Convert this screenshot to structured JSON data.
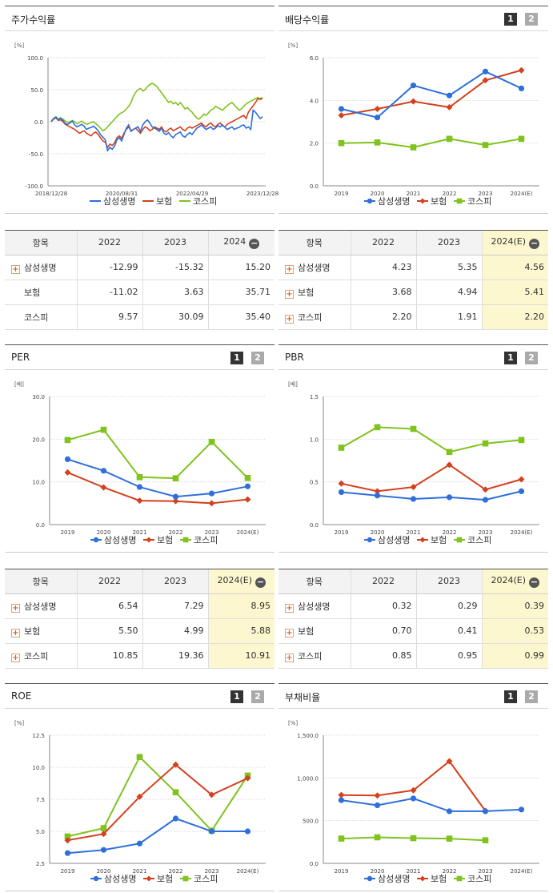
{
  "colors": {
    "samsung": "#2e6fdb",
    "insurance": "#d5401d",
    "kospi": "#7fc31c",
    "grid": "#d9d9d9",
    "axis": "#888888"
  },
  "icons": {
    "expand": "plus-icon",
    "collapse": "minus-icon"
  },
  "pager": {
    "p1": "1",
    "p2": "2"
  },
  "panels": {
    "stock_return": {
      "title": "주가수익률"
    },
    "dividend": {
      "title": "배당수익률"
    },
    "per": {
      "title": "PER"
    },
    "pbr": {
      "title": "PBR"
    },
    "roe": {
      "title": "ROE"
    },
    "debt": {
      "title": "부채비율"
    }
  },
  "chart_data": [
    {
      "id": "stock_return",
      "type": "line",
      "unit": "[%]",
      "ylim": [
        -100,
        100
      ],
      "yticks": [
        "100.0",
        "50.0",
        "0.0",
        "-50.0",
        "-100.0"
      ],
      "xtick_labels": [
        "2018/12/28",
        "2020/08/31",
        "2022/04/29",
        "2023/12/28"
      ],
      "series": [
        {
          "name": "삼성생명",
          "key": "samsung",
          "values": [
            0,
            5,
            7,
            3,
            6,
            2,
            -3,
            -4,
            -2,
            1,
            -5,
            -8,
            -6,
            -4,
            -7,
            -12,
            -10,
            -9,
            -7,
            -10,
            -14,
            -20,
            -24,
            -28,
            -45,
            -40,
            -43,
            -38,
            -28,
            -25,
            -30,
            -20,
            -10,
            -5,
            -15,
            -12,
            -10,
            -8,
            -15,
            -5,
            0,
            3,
            -2,
            -8,
            -10,
            -12,
            -15,
            -10,
            -18,
            -20,
            -17,
            -22,
            -25,
            -20,
            -18,
            -16,
            -22,
            -24,
            -20,
            -17,
            -20,
            -15,
            -10,
            -8,
            -5,
            -9,
            -12,
            -10,
            -8,
            -12,
            -10,
            -6,
            -8,
            -5,
            -9,
            -12,
            -10,
            -8,
            -12,
            -10,
            -9,
            -6,
            -5,
            -10,
            -8,
            -12,
            18,
            15,
            10,
            5,
            8
          ]
        },
        {
          "name": "보험",
          "key": "insurance",
          "values": [
            0,
            4,
            6,
            2,
            3,
            0,
            -4,
            -6,
            -8,
            -10,
            -12,
            -15,
            -18,
            -16,
            -14,
            -18,
            -20,
            -22,
            -18,
            -16,
            -20,
            -25,
            -30,
            -32,
            -40,
            -35,
            -37,
            -33,
            -25,
            -22,
            -26,
            -18,
            -12,
            -8,
            -14,
            -12,
            -10,
            -14,
            -18,
            -12,
            -8,
            -10,
            -14,
            -12,
            -8,
            -10,
            -12,
            -8,
            -14,
            -16,
            -12,
            -10,
            -14,
            -12,
            -10,
            -8,
            -12,
            -14,
            -10,
            -8,
            -10,
            -8,
            -6,
            -4,
            -2,
            -6,
            -8,
            -4,
            -2,
            -6,
            -8,
            -4,
            -2,
            -6,
            -8,
            -4,
            -2,
            0,
            2,
            4,
            6,
            8,
            10,
            5,
            15,
            20,
            25,
            30,
            36,
            35,
            36
          ]
        },
        {
          "name": "코스피",
          "key": "kospi",
          "values": [
            0,
            5,
            8,
            4,
            6,
            4,
            1,
            -1,
            0,
            2,
            0,
            -3,
            -1,
            1,
            -2,
            -4,
            -3,
            -1,
            0,
            -3,
            -6,
            -10,
            -14,
            -12,
            -8,
            -4,
            0,
            4,
            8,
            12,
            14,
            16,
            20,
            24,
            30,
            40,
            46,
            50,
            52,
            48,
            50,
            55,
            58,
            60,
            58,
            55,
            50,
            45,
            40,
            35,
            30,
            32,
            28,
            30,
            26,
            30,
            25,
            20,
            22,
            18,
            15,
            10,
            6,
            4,
            8,
            12,
            10,
            14,
            18,
            20,
            24,
            22,
            20,
            18,
            22,
            25,
            28,
            30,
            26,
            22,
            18,
            20,
            24,
            28,
            30,
            32,
            34,
            36,
            38,
            36,
            38
          ]
        }
      ]
    },
    {
      "id": "dividend",
      "type": "line",
      "unit": "[%]",
      "ylim": [
        0,
        6
      ],
      "yticks": [
        "6.0",
        "4.0",
        "2.0",
        "0.0"
      ],
      "categories": [
        "2019",
        "2020",
        "2021",
        "2022",
        "2023",
        "2024(E)"
      ],
      "series": [
        {
          "name": "삼성생명",
          "key": "samsung",
          "values": [
            3.6,
            3.2,
            4.7,
            4.23,
            5.35,
            4.56
          ]
        },
        {
          "name": "보험",
          "key": "insurance",
          "values": [
            3.3,
            3.6,
            3.95,
            3.68,
            4.94,
            5.41
          ]
        },
        {
          "name": "코스피",
          "key": "kospi",
          "values": [
            2.0,
            2.03,
            1.8,
            2.2,
            1.91,
            2.2
          ]
        }
      ]
    },
    {
      "id": "per",
      "type": "line",
      "unit": "[배]",
      "ylim": [
        0,
        30
      ],
      "yticks": [
        "30.0",
        "20.0",
        "10.0",
        "0.0"
      ],
      "categories": [
        "2019",
        "2020",
        "2021",
        "2022",
        "2023",
        "2024(E)"
      ],
      "series": [
        {
          "name": "삼성생명",
          "key": "samsung",
          "values": [
            15.3,
            12.6,
            8.8,
            6.54,
            7.29,
            8.95
          ]
        },
        {
          "name": "보험",
          "key": "insurance",
          "values": [
            12.2,
            8.7,
            5.6,
            5.5,
            4.99,
            5.88
          ]
        },
        {
          "name": "코스피",
          "key": "kospi",
          "values": [
            19.8,
            22.2,
            11.1,
            10.85,
            19.36,
            10.91
          ]
        }
      ]
    },
    {
      "id": "pbr",
      "type": "line",
      "unit": "[배]",
      "ylim": [
        0,
        1.5
      ],
      "yticks": [
        "1.5",
        "1.0",
        "0.5",
        "0.0"
      ],
      "categories": [
        "2019",
        "2020",
        "2021",
        "2022",
        "2023",
        "2024(E)"
      ],
      "series": [
        {
          "name": "삼성생명",
          "key": "samsung",
          "values": [
            0.38,
            0.34,
            0.3,
            0.32,
            0.29,
            0.39
          ]
        },
        {
          "name": "보험",
          "key": "insurance",
          "values": [
            0.48,
            0.39,
            0.44,
            0.7,
            0.41,
            0.53
          ]
        },
        {
          "name": "코스피",
          "key": "kospi",
          "values": [
            0.9,
            1.14,
            1.12,
            0.85,
            0.95,
            0.99
          ]
        }
      ]
    },
    {
      "id": "roe",
      "type": "line",
      "unit": "[%]",
      "ylim": [
        2.5,
        12.5
      ],
      "yticks": [
        "12.5",
        "10.0",
        "7.5",
        "5.0",
        "2.5"
      ],
      "categories": [
        "2019",
        "2020",
        "2021",
        "2022",
        "2023",
        "2024(E)"
      ],
      "series": [
        {
          "name": "삼성생명",
          "key": "samsung",
          "values": [
            3.3,
            3.55,
            4.05,
            6.0,
            5.0,
            5.0
          ]
        },
        {
          "name": "보험",
          "key": "insurance",
          "values": [
            4.3,
            4.8,
            7.7,
            10.2,
            7.85,
            9.15
          ]
        },
        {
          "name": "코스피",
          "key": "kospi",
          "values": [
            4.6,
            5.25,
            10.8,
            8.05,
            5.05,
            9.35
          ]
        }
      ]
    },
    {
      "id": "debt",
      "type": "line",
      "unit": "[%]",
      "ylim": [
        0,
        1500
      ],
      "yticks": [
        "1,500.0",
        "1,000.0",
        "500.0",
        "0.0"
      ],
      "categories": [
        "2019",
        "2020",
        "2021",
        "2022",
        "2023",
        "2024(E)"
      ],
      "series": [
        {
          "name": "삼성생명",
          "key": "samsung",
          "values": [
            740,
            680,
            760,
            610,
            610,
            630
          ]
        },
        {
          "name": "보험",
          "key": "insurance",
          "values": [
            800,
            795,
            855,
            1195,
            615,
            null
          ]
        },
        {
          "name": "코스피",
          "key": "kospi",
          "values": [
            290,
            305,
            295,
            290,
            270,
            null
          ]
        }
      ]
    }
  ],
  "tables": {
    "stock_return": {
      "header": [
        "항목",
        "2022",
        "2023",
        "2024"
      ],
      "rows": [
        {
          "label": "삼성생명",
          "plus": true,
          "v": [
            "-12.99",
            "-15.32",
            "15.20"
          ]
        },
        {
          "label": "보험",
          "plus": false,
          "v": [
            "-11.02",
            "3.63",
            "35.71"
          ]
        },
        {
          "label": "코스피",
          "plus": false,
          "v": [
            "9.57",
            "30.09",
            "35.40"
          ]
        }
      ]
    },
    "dividend": {
      "header": [
        "항목",
        "2022",
        "2023",
        "2024(E)"
      ],
      "rows": [
        {
          "label": "삼성생명",
          "plus": true,
          "v": [
            "4.23",
            "5.35",
            "4.56"
          ]
        },
        {
          "label": "보험",
          "plus": true,
          "v": [
            "3.68",
            "4.94",
            "5.41"
          ]
        },
        {
          "label": "코스피",
          "plus": true,
          "v": [
            "2.20",
            "1.91",
            "2.20"
          ]
        }
      ]
    },
    "per": {
      "header": [
        "항목",
        "2022",
        "2023",
        "2024(E)"
      ],
      "rows": [
        {
          "label": "삼성생명",
          "plus": true,
          "v": [
            "6.54",
            "7.29",
            "8.95"
          ]
        },
        {
          "label": "보험",
          "plus": true,
          "v": [
            "5.50",
            "4.99",
            "5.88"
          ]
        },
        {
          "label": "코스피",
          "plus": true,
          "v": [
            "10.85",
            "19.36",
            "10.91"
          ]
        }
      ]
    },
    "pbr": {
      "header": [
        "항목",
        "2022",
        "2023",
        "2024(E)"
      ],
      "rows": [
        {
          "label": "삼성생명",
          "plus": true,
          "v": [
            "0.32",
            "0.29",
            "0.39"
          ]
        },
        {
          "label": "보험",
          "plus": true,
          "v": [
            "0.70",
            "0.41",
            "0.53"
          ]
        },
        {
          "label": "코스피",
          "plus": true,
          "v": [
            "0.85",
            "0.95",
            "0.99"
          ]
        }
      ]
    }
  }
}
